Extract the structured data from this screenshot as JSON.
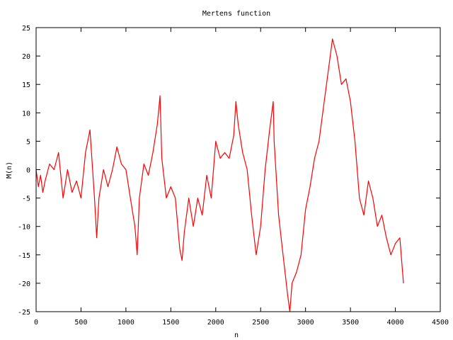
{
  "chart_data": {
    "type": "line",
    "title": "Mertens function",
    "xlabel": "n",
    "ylabel": "M(n)",
    "xlim": [
      0,
      4500
    ],
    "ylim": [
      -25,
      25
    ],
    "x_ticks": [
      0,
      500,
      1000,
      1500,
      2000,
      2500,
      3000,
      3500,
      4000,
      4500
    ],
    "y_ticks": [
      -25,
      -20,
      -15,
      -10,
      -5,
      0,
      5,
      10,
      15,
      20,
      25
    ],
    "grid": false,
    "legend": "none",
    "series_color": "#ff0000",
    "series": [
      {
        "x": [
          0,
          25,
          50,
          75,
          100,
          150,
          200,
          250,
          300,
          350,
          400,
          450,
          500,
          550,
          575,
          600,
          650,
          675,
          700,
          750,
          800,
          850,
          900,
          950,
          1000,
          1050,
          1100,
          1125,
          1150,
          1200,
          1250,
          1300,
          1350,
          1380,
          1400,
          1450,
          1500,
          1550,
          1600,
          1625,
          1650,
          1700,
          1750,
          1800,
          1850,
          1900,
          1950,
          2000,
          2050,
          2100,
          2150,
          2200,
          2225,
          2250,
          2300,
          2350,
          2400,
          2450,
          2500,
          2550,
          2600,
          2640,
          2650,
          2700,
          2750,
          2800,
          2825,
          2850,
          2900,
          2950,
          3000,
          3050,
          3100,
          3150,
          3200,
          3250,
          3300,
          3350,
          3400,
          3450,
          3500,
          3550,
          3600,
          3650,
          3700,
          3750,
          3800,
          3850,
          3900,
          3950,
          4000,
          4050,
          4090
        ],
        "values": [
          0,
          -3,
          -1,
          -4,
          -2,
          1,
          0,
          3,
          -5,
          0,
          -4,
          -2,
          -5,
          3,
          5,
          7,
          -5,
          -12,
          -5,
          0,
          -3,
          0,
          4,
          1,
          0,
          -5,
          -10,
          -15,
          -5,
          1,
          -1,
          3,
          8,
          13,
          2,
          -5,
          -3,
          -5,
          -14,
          -16,
          -11,
          -5,
          -10,
          -5,
          -8,
          -1,
          -5,
          5,
          2,
          3,
          2,
          6,
          12,
          8,
          3,
          0,
          -8,
          -15,
          -10,
          0,
          7,
          12,
          5,
          -8,
          -15,
          -22,
          -25,
          -20,
          -18,
          -15,
          -7,
          -3,
          2,
          5,
          11,
          17,
          23,
          20,
          15,
          16,
          12,
          5,
          -5,
          -8,
          -2,
          -5,
          -10,
          -8,
          -12,
          -15,
          -13,
          -12,
          -20
        ]
      }
    ]
  }
}
